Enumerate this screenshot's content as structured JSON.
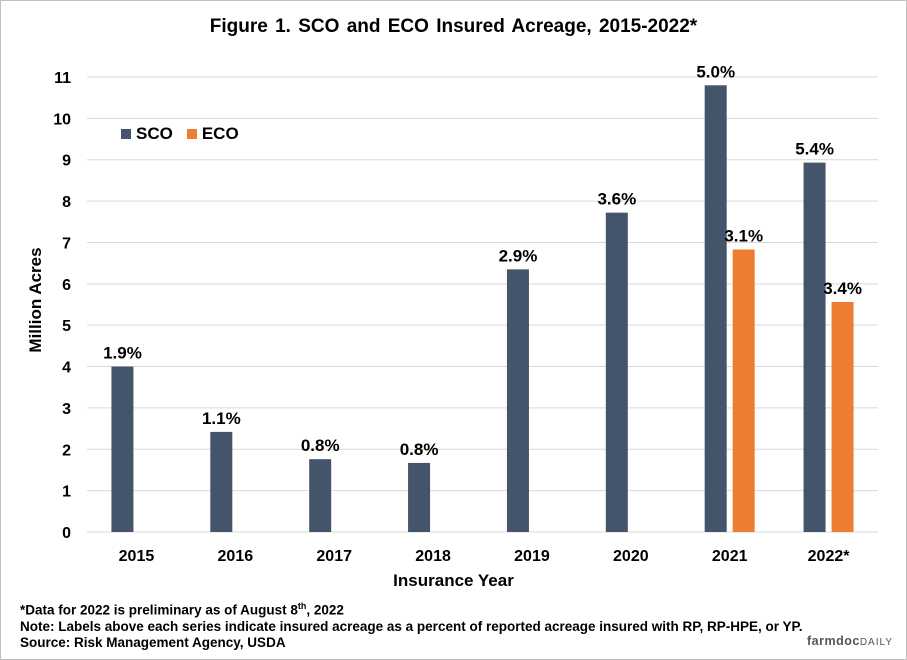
{
  "chart_data": {
    "type": "bar",
    "title": "Figure  1. SCO and ECO Insured  Acreage,  2015-2022*",
    "xlabel": "Insurance Year",
    "ylabel": "Million Acres",
    "ylim": [
      0,
      11
    ],
    "yticks": [
      "0",
      "1",
      "2",
      "3",
      "4",
      "5",
      "6",
      "7",
      "8",
      "9",
      "10",
      "11"
    ],
    "grid": true,
    "legend_position": "top-left",
    "categories": [
      "2015",
      "2016",
      "2017",
      "2018",
      "2019",
      "2020",
      "2021",
      "2022*"
    ],
    "series": [
      {
        "name": "SCO",
        "color": "#44546a",
        "values": [
          4.0,
          2.42,
          1.76,
          1.67,
          6.35,
          7.72,
          10.8,
          8.93
        ],
        "labels": [
          "1.9%",
          "1.1%",
          "0.8%",
          "0.8%",
          "2.9%",
          "3.6%",
          "5.0%",
          "5.4%"
        ]
      },
      {
        "name": "ECO",
        "color": "#ed7d31",
        "values": [
          null,
          null,
          null,
          null,
          null,
          null,
          6.83,
          5.56
        ],
        "labels": [
          "",
          "",
          "",
          "",
          "",
          "",
          "3.1%",
          "3.4%"
        ]
      }
    ]
  },
  "notes": {
    "line1_pre": "*Data for 2022 is preliminary as of August 8",
    "line1_sup": "th",
    "line1_post": ", 2022",
    "line2": "Note: Labels above each series indicate insured acreage as a percent of reported acreage insured with RP, RP-HPE, or YP.",
    "line3": "Source: Risk Management Agency,  USDA"
  },
  "brand": {
    "farmdoc": "farmdoc",
    "daily": "DAILY"
  }
}
